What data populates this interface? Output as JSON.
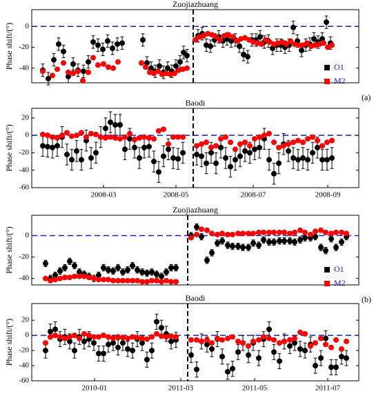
{
  "chart_data": [
    {
      "type": "scatter",
      "title": "Zuojiazhuang",
      "ylabel": "Phase shift/(°)",
      "annotation": "(a)",
      "xlim": [
        0,
        474
      ],
      "ylim": [
        -54,
        16
      ],
      "yticks": [
        0,
        -20,
        -40
      ],
      "hline": 0,
      "vline": 234,
      "legend": "lower right",
      "series": [
        {
          "name": "O1",
          "color": "#000000",
          "error": 6,
          "x": [
            16,
            24,
            32,
            39,
            46,
            53,
            60,
            67,
            75,
            82,
            89,
            96,
            103,
            110,
            117,
            124,
            131,
            161,
            167,
            173,
            179,
            185,
            191,
            197,
            203,
            209,
            215,
            220,
            225,
            241,
            247,
            253,
            259,
            265,
            271,
            277,
            283,
            289,
            295,
            301,
            307,
            313,
            319,
            325,
            331,
            337,
            343,
            349,
            355,
            361,
            367,
            373,
            379,
            385,
            391,
            397,
            403,
            409,
            415,
            421,
            427,
            433
          ],
          "values": [
            -42,
            -50,
            -32,
            -17,
            -24,
            -48,
            -36,
            -42,
            -43,
            -34,
            -15,
            -18,
            -22,
            -14,
            -21,
            -17,
            -16,
            -13,
            -35,
            -40,
            -43,
            -38,
            -44,
            -40,
            -43,
            -38,
            -34,
            -25,
            -28,
            -9,
            -7,
            -18,
            -19,
            -13,
            -10,
            -14,
            -12,
            -14,
            -13,
            -19,
            -27,
            -29,
            -13,
            -13,
            -10,
            -15,
            -14,
            -21,
            -18,
            -18,
            -20,
            -18,
            -1,
            -14,
            -23,
            -18,
            -17,
            -12,
            -15,
            -12,
            4,
            -16
          ]
        },
        {
          "name": "M2",
          "color": "#ff0000",
          "x": [
            16,
            30,
            37,
            46,
            53,
            60,
            67,
            74,
            82,
            89,
            96,
            104,
            111,
            118,
            125,
            159,
            165,
            171,
            177,
            183,
            189,
            195,
            201,
            207,
            213,
            219,
            225,
            237,
            243,
            249,
            255,
            261,
            267,
            273,
            279,
            285,
            291,
            297,
            303,
            309,
            315,
            321,
            327,
            333,
            339,
            345,
            351,
            357,
            363,
            369,
            375,
            381,
            387,
            393,
            399,
            405,
            411,
            417,
            423,
            429,
            435
          ],
          "values": [
            -43,
            -47,
            -41,
            -35,
            -44,
            -45,
            -43,
            -52,
            -44,
            -30,
            -37,
            -36,
            -39,
            -40,
            -34,
            -35,
            -39,
            -44,
            -45,
            -43,
            -46,
            -45,
            -46,
            -45,
            -42,
            -41,
            -40,
            -13,
            -10,
            -9,
            -7,
            -8,
            -10,
            -13,
            -9,
            -8,
            -10,
            -14,
            -12,
            -11,
            -13,
            -15,
            -16,
            -17,
            -13,
            -15,
            -17,
            -16,
            -15,
            -17,
            -14,
            -17,
            -18,
            -18,
            -16,
            -19,
            -18,
            -17,
            -16,
            -20,
            -18
          ]
        }
      ]
    },
    {
      "type": "scatter",
      "title": "Baodi",
      "ylabel": "Phase shift/(°)",
      "xlim": [
        0,
        474
      ],
      "ylim": [
        -60,
        31
      ],
      "yticks": [
        20,
        0,
        -20,
        -40,
        -60
      ],
      "hline": 0,
      "vline": 234,
      "xticks": [
        {
          "value": 104,
          "label": "2008-03"
        },
        {
          "value": 209,
          "label": "2008-05"
        },
        {
          "value": 321,
          "label": "2008-07"
        },
        {
          "value": 429,
          "label": "2008-09"
        }
      ],
      "series": [
        {
          "name": "O1",
          "color": "#000000",
          "error": 12,
          "x": [
            16,
            23,
            30,
            37,
            44,
            51,
            58,
            65,
            72,
            79,
            86,
            93,
            100,
            107,
            114,
            121,
            128,
            135,
            142,
            149,
            156,
            163,
            170,
            177,
            184,
            191,
            198,
            205,
            212,
            219,
            239,
            246,
            253,
            260,
            267,
            274,
            281,
            288,
            295,
            302,
            309,
            316,
            323,
            330,
            337,
            344,
            351,
            358,
            365,
            372,
            379,
            386,
            393,
            400,
            407,
            414,
            421,
            428,
            435
          ],
          "values": [
            -12,
            -13,
            -14,
            -12,
            -2,
            -22,
            -28,
            -18,
            -28,
            -6,
            -26,
            -20,
            -2,
            8,
            15,
            12,
            12,
            -16,
            -4,
            -14,
            -26,
            -14,
            -13,
            -30,
            -42,
            -24,
            -16,
            -26,
            -27,
            -20,
            -22,
            -24,
            -32,
            -20,
            -32,
            -14,
            -26,
            -36,
            -28,
            -24,
            -18,
            -20,
            -16,
            -14,
            -4,
            -28,
            -44,
            -32,
            -10,
            -18,
            -26,
            -28,
            -26,
            -28,
            -20,
            -14,
            -28,
            -28,
            -26
          ]
        },
        {
          "name": "M2",
          "color": "#ff0000",
          "x": [
            16,
            23,
            30,
            37,
            44,
            51,
            58,
            65,
            72,
            79,
            86,
            93,
            100,
            107,
            114,
            121,
            128,
            135,
            142,
            149,
            156,
            163,
            170,
            177,
            184,
            191,
            198,
            205,
            212,
            219,
            239,
            246,
            253,
            260,
            267,
            274,
            281,
            288,
            295,
            302,
            309,
            316,
            323,
            330,
            337,
            344,
            351,
            358,
            365,
            372,
            379,
            386,
            393,
            400,
            407,
            414,
            421,
            428,
            435
          ],
          "values": [
            1,
            0,
            -2,
            -3,
            0,
            3,
            -1,
            0,
            3,
            -2,
            2,
            1,
            -2,
            -3,
            -2,
            -3,
            -4,
            -2,
            2,
            -5,
            -3,
            -2,
            -3,
            -4,
            5,
            7,
            -10,
            -2,
            -2,
            -2,
            -12,
            -10,
            -8,
            -14,
            -12,
            -4,
            -2,
            -8,
            -16,
            -10,
            -8,
            -12,
            -4,
            -2,
            0,
            2,
            -8,
            -14,
            -12,
            -10,
            -8,
            -6,
            -8,
            -4,
            -2,
            -6,
            -12,
            -8,
            -6
          ]
        }
      ]
    },
    {
      "type": "scatter",
      "title": "Zuojiazhuang",
      "ylabel": "Phase shift/(°)",
      "annotation": "(b)",
      "xlim": [
        0,
        474
      ],
      "ylim": [
        -46,
        19
      ],
      "yticks": [
        0,
        -20,
        -40
      ],
      "hline": 0,
      "vline": 226,
      "legend": "lower right",
      "series": [
        {
          "name": "O1",
          "color": "#000000",
          "error": 3,
          "x": [
            20,
            27,
            34,
            41,
            48,
            55,
            62,
            69,
            76,
            83,
            90,
            97,
            104,
            111,
            118,
            125,
            132,
            139,
            146,
            153,
            160,
            167,
            174,
            181,
            188,
            195,
            202,
            209,
            231,
            239,
            246,
            254,
            261,
            269,
            276,
            284,
            291,
            299,
            306,
            314,
            321,
            329,
            336,
            344,
            351,
            359,
            366,
            374,
            381,
            389,
            396,
            404,
            411,
            419,
            426,
            434,
            441,
            449,
            456
          ],
          "values": [
            -26,
            -40,
            -37,
            -33,
            -30,
            -24,
            -28,
            -34,
            -36,
            -38,
            -40,
            -37,
            -30,
            -32,
            -33,
            -30,
            -34,
            -32,
            -28,
            -32,
            -34,
            -35,
            -34,
            -36,
            -38,
            -34,
            -30,
            -30,
            0,
            8,
            -1,
            -23,
            -16,
            -7,
            -5,
            -9,
            -10,
            -10,
            -11,
            -11,
            -7,
            -9,
            -4,
            -6,
            -6,
            -5,
            -5,
            -5,
            -6,
            -4,
            -2,
            -2,
            -1,
            -11,
            -14,
            -3,
            -11,
            -6,
            -1
          ]
        },
        {
          "name": "M2",
          "color": "#ff0000",
          "x": [
            20,
            27,
            34,
            41,
            48,
            55,
            62,
            69,
            76,
            83,
            90,
            97,
            104,
            111,
            118,
            125,
            132,
            139,
            146,
            153,
            160,
            167,
            174,
            181,
            188,
            195,
            202,
            209,
            231,
            239,
            246,
            254,
            261,
            269,
            276,
            284,
            291,
            299,
            306,
            314,
            321,
            329,
            336,
            344,
            351,
            359,
            366,
            374,
            381,
            389,
            396,
            404,
            411,
            419,
            426,
            434,
            441,
            449,
            456
          ],
          "values": [
            -40,
            -42,
            -41,
            -40,
            -39,
            -39,
            -38,
            -38,
            -38,
            -39,
            -40,
            -41,
            -41,
            -41,
            -42,
            -42,
            -42,
            -42,
            -42,
            -42,
            -43,
            -43,
            -42,
            -42,
            -43,
            -42,
            -43,
            -43,
            -2,
            1,
            6,
            5,
            2,
            1,
            2,
            1,
            1,
            2,
            2,
            2,
            2,
            3,
            3,
            3,
            3,
            3,
            3,
            2,
            3,
            5,
            3,
            1,
            4,
            5,
            3,
            2,
            3,
            3,
            2
          ]
        }
      ]
    },
    {
      "type": "scatter",
      "title": "Baodi",
      "ylabel": "Phase shift/(°)",
      "xlim": [
        0,
        474
      ],
      "ylim": [
        -60,
        42
      ],
      "yticks": [
        20,
        0,
        -20,
        -40,
        -60
      ],
      "hline": 0,
      "vline": 226,
      "xticks": [
        {
          "value": 91,
          "label": "2010-01"
        },
        {
          "value": 216,
          "label": "2011-03"
        },
        {
          "value": 323,
          "label": "2011-05"
        },
        {
          "value": 429,
          "label": "2011-07"
        }
      ],
      "series": [
        {
          "name": "O1",
          "color": "#000000",
          "error": 10,
          "x": [
            20,
            27,
            34,
            41,
            48,
            55,
            62,
            69,
            76,
            83,
            90,
            97,
            104,
            111,
            118,
            125,
            132,
            139,
            146,
            153,
            160,
            167,
            174,
            181,
            188,
            195,
            202,
            209,
            231,
            239,
            246,
            254,
            261,
            269,
            276,
            284,
            291,
            299,
            306,
            314,
            321,
            329,
            336,
            344,
            351,
            359,
            366,
            374,
            381,
            389,
            396,
            404,
            411,
            419,
            426,
            434,
            441,
            449,
            456
          ],
          "values": [
            -20,
            5,
            8,
            -5,
            -2,
            -8,
            -20,
            -2,
            -8,
            -5,
            -10,
            -24,
            -24,
            -12,
            -10,
            -16,
            -10,
            -18,
            -20,
            -5,
            -10,
            -32,
            -20,
            18,
            10,
            2,
            -8,
            -6,
            -26,
            -45,
            -8,
            -12,
            -18,
            -5,
            -28,
            -48,
            -44,
            -22,
            -10,
            -26,
            -10,
            -30,
            -5,
            8,
            -22,
            -34,
            -8,
            -14,
            -10,
            -18,
            -20,
            -12,
            -40,
            -30,
            -4,
            -42,
            -42,
            -28,
            -30
          ]
        },
        {
          "name": "M2",
          "color": "#ff0000",
          "x": [
            20,
            27,
            34,
            41,
            48,
            55,
            62,
            69,
            76,
            83,
            90,
            97,
            104,
            111,
            118,
            125,
            132,
            139,
            146,
            153,
            160,
            167,
            174,
            181,
            188,
            195,
            202,
            209,
            231,
            239,
            246,
            254,
            261,
            269,
            276,
            284,
            291,
            299,
            306,
            314,
            321,
            329,
            336,
            344,
            351,
            359,
            366,
            374,
            381,
            389,
            396,
            404,
            411,
            419,
            426,
            434,
            441,
            449,
            456
          ],
          "values": [
            -10,
            -2,
            0,
            -2,
            -4,
            -2,
            0,
            -4,
            2,
            0,
            -2,
            -2,
            0,
            -2,
            -4,
            -2,
            -3,
            -4,
            -2,
            -3,
            -4,
            -5,
            -2,
            2,
            -1,
            -2,
            -1,
            -2,
            -6,
            -6,
            -8,
            -6,
            -10,
            -4,
            -6,
            -4,
            -2,
            -8,
            -10,
            -14,
            -8,
            -6,
            -2,
            -4,
            -6,
            -10,
            -8,
            -6,
            -4,
            4,
            2,
            -14,
            -10,
            -4,
            -12,
            -16,
            -6,
            -18,
            -8
          ]
        }
      ]
    }
  ]
}
